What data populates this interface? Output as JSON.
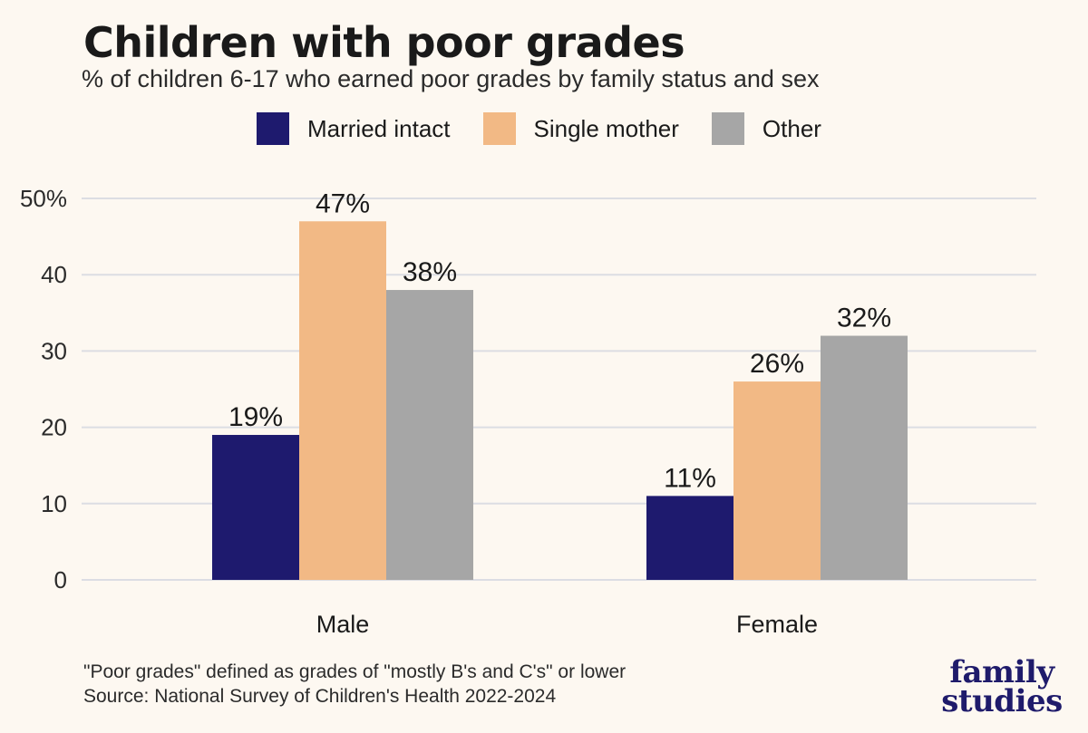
{
  "chart_data": {
    "type": "bar",
    "title": "Children with poor grades",
    "subtitle": "% of children 6-17 who earned poor grades by family status and sex",
    "categories": [
      "Male",
      "Female"
    ],
    "series": [
      {
        "name": "Married intact",
        "color": "#1e1a6e",
        "values": [
          19,
          11
        ],
        "labels": [
          "19%",
          "11%"
        ]
      },
      {
        "name": "Single mother",
        "color": "#f2b985",
        "values": [
          47,
          26
        ],
        "labels": [
          "47%",
          "26%"
        ]
      },
      {
        "name": "Other",
        "color": "#a6a6a6",
        "values": [
          38,
          32
        ],
        "labels": [
          "38%",
          "32%"
        ]
      }
    ],
    "ylim": [
      0,
      50
    ],
    "yticks": [
      0,
      10,
      20,
      30,
      40,
      50
    ],
    "ytick_labels": [
      "0",
      "10",
      "20",
      "30",
      "40",
      "50%"
    ],
    "grid": true,
    "legend_placement": "top-center"
  },
  "footnote": {
    "line1": "\"Poor grades\" defined as grades of \"mostly B's and C's\" or lower",
    "line2": "Source: National Survey of Children's Health 2022-2024"
  },
  "logo": {
    "line1": "family",
    "line2": "studies"
  }
}
